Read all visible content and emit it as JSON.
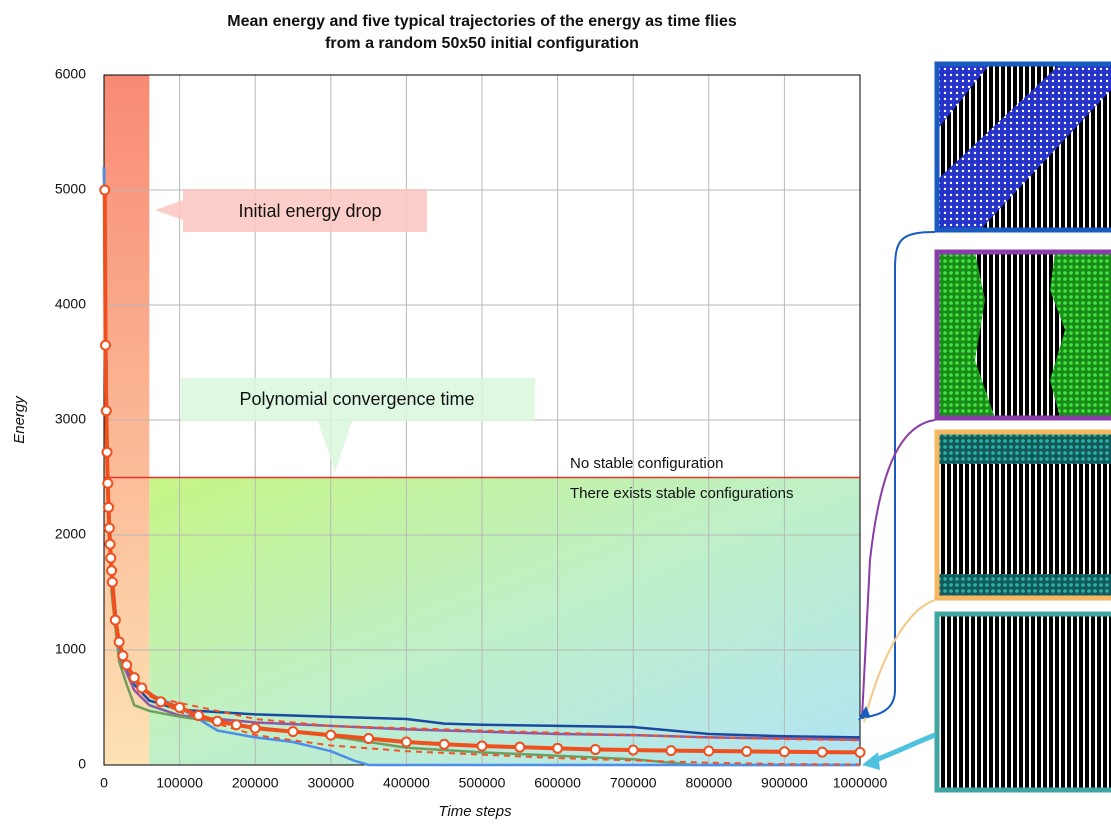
{
  "chart_data": {
    "type": "line",
    "title": [
      "Mean energy and five typical trajectories of the energy as time flies",
      "from a random 50x50 initial configuration"
    ],
    "x_label": "Time steps",
    "y_label": "Energy",
    "xlim": [
      0,
      1000000
    ],
    "ylim": [
      0,
      6000
    ],
    "xticks": [
      0,
      100000,
      200000,
      300000,
      400000,
      500000,
      600000,
      700000,
      800000,
      900000,
      1000000
    ],
    "yticks": [
      0,
      1000,
      2000,
      3000,
      4000,
      5000,
      6000
    ],
    "grid": true,
    "annotations": [
      "Initial energy drop",
      "Polynomial convergence time",
      "No stable configuration",
      "There exists stable configurations"
    ],
    "threshold": 2500,
    "drop_end": 60000,
    "series": [
      {
        "color": "#1a4aa0",
        "x": [
          0,
          5000,
          10000,
          20000,
          40000,
          60000,
          100000,
          200000,
          300000,
          400000,
          450000,
          500000,
          600000,
          700000,
          750000,
          800000,
          900000,
          1000000
        ],
        "values": [
          5200,
          2500,
          1700,
          1000,
          700,
          560,
          480,
          440,
          420,
          400,
          360,
          350,
          340,
          330,
          300,
          270,
          250,
          240
        ]
      },
      {
        "color": "#8e5aa8",
        "x": [
          0,
          5000,
          10000,
          20000,
          40000,
          60000,
          100000,
          200000,
          300000,
          400000,
          500000,
          600000,
          700000,
          800000,
          900000,
          1000000
        ],
        "values": [
          5200,
          2400,
          1650,
          950,
          650,
          520,
          430,
          370,
          340,
          310,
          290,
          270,
          260,
          240,
          230,
          220
        ]
      },
      {
        "color": "#6f9f5f",
        "x": [
          0,
          5000,
          10000,
          20000,
          30000,
          40000,
          60000,
          100000,
          200000,
          300000,
          400000,
          500000,
          600000,
          700000,
          750000,
          780000,
          1000000
        ],
        "values": [
          5200,
          2300,
          1500,
          900,
          700,
          520,
          470,
          420,
          330,
          250,
          150,
          110,
          80,
          50,
          20,
          0,
          0
        ]
      },
      {
        "color": "#4d8fe8",
        "x": [
          0,
          5000,
          10000,
          20000,
          40000,
          60000,
          100000,
          150000,
          200000,
          250000,
          300000,
          330000,
          350000,
          1000000
        ],
        "values": [
          5200,
          2500,
          1700,
          1000,
          720,
          620,
          500,
          300,
          240,
          200,
          120,
          40,
          0,
          0
        ]
      },
      {
        "color": "#f0522a",
        "dash": true,
        "x": [
          60000,
          100000,
          200000,
          300000,
          400000,
          500000,
          600000,
          700000,
          800000,
          900000,
          1000000
        ],
        "values": [
          600,
          540,
          400,
          340,
          320,
          300,
          280,
          260,
          240,
          225,
          215
        ]
      },
      {
        "color": "#f0522a",
        "dash": true,
        "x": [
          60000,
          100000,
          200000,
          300000,
          400000,
          500000,
          600000,
          700000,
          800000,
          900000,
          1000000
        ],
        "values": [
          600,
          460,
          260,
          170,
          120,
          90,
          60,
          40,
          20,
          8,
          5
        ]
      },
      {
        "color": "#f0501e",
        "markers": true,
        "x": [
          1000,
          2000,
          3000,
          4000,
          5000,
          6000,
          7000,
          8000,
          9000,
          10000,
          11000,
          15000,
          20000,
          25000,
          30000,
          40000,
          50000,
          75000,
          100000,
          125000,
          150000,
          175000,
          200000,
          250000,
          300000,
          350000,
          400000,
          450000,
          500000,
          550000,
          600000,
          650000,
          700000,
          750000,
          800000,
          850000,
          900000,
          950000,
          1000000
        ],
        "values": [
          5000,
          3650,
          3080,
          2720,
          2450,
          2240,
          2060,
          1920,
          1800,
          1690,
          1590,
          1260,
          1070,
          950,
          870,
          760,
          670,
          550,
          500,
          430,
          380,
          350,
          320,
          290,
          260,
          230,
          200,
          180,
          165,
          155,
          145,
          135,
          130,
          125,
          122,
          118,
          115,
          112,
          110
        ]
      }
    ]
  }
}
